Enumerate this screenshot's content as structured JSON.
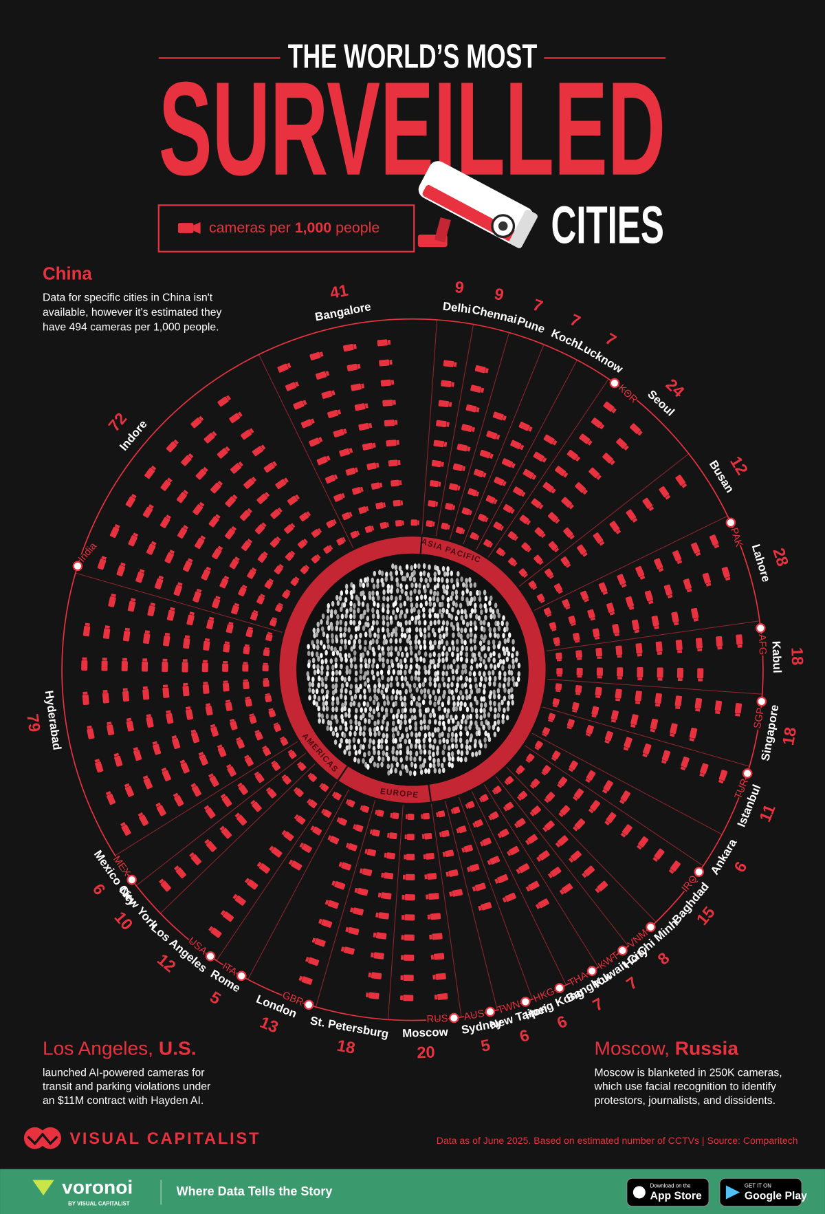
{
  "title_top": "THE WORLD’S MOST",
  "title_main": "SURVEILLED",
  "title_end": "CITIES",
  "legend": {
    "pre": "cameras per ",
    "bold": "1,000",
    "post": " people"
  },
  "annotations": [
    {
      "title": "China",
      "lines": [
        "Data for specific cities in China isn't",
        "available, however it's estimated they",
        "have 494 cameras per 1,000 people."
      ]
    },
    {
      "title": "Los Angeles, ",
      "title_bold": "U.S.",
      "lines": [
        "launched AI-powered cameras for",
        "transit and parking violations under",
        "an $11M contract with Hayden AI."
      ]
    },
    {
      "title": "Moscow, ",
      "title_bold": "Russia",
      "lines": [
        "Moscow is blanketed in 250K cameras,",
        "which use facial recognition to identify",
        "protestors, journalists, and dissidents."
      ]
    }
  ],
  "chart_data": {
    "type": "radial-unit",
    "color": "#e8323f",
    "categories": [
      "Delhi",
      "Chennai",
      "Pune",
      "Kochi",
      "Lucknow",
      "Seoul",
      "Busan",
      "Lahore",
      "Kabul",
      "Singapore",
      "Istanbul",
      "Ankara",
      "Baghdad",
      "Ho Chi Minh",
      "Kuwait City",
      "Bangkok",
      "Hong Kong",
      "New Taipei",
      "Sydney",
      "Moscow",
      "St. Petersburg",
      "London",
      "Rome",
      "Los Angeles",
      "New York",
      "Mexico City",
      "Hyderabad",
      "Indore",
      "Bangalore"
    ],
    "values": [
      9,
      9,
      7,
      7,
      7,
      24,
      12,
      28,
      18,
      18,
      11,
      6,
      15,
      8,
      7,
      7,
      6,
      6,
      5,
      20,
      18,
      13,
      5,
      12,
      10,
      6,
      79,
      72,
      41
    ],
    "countries": [
      null,
      null,
      null,
      null,
      null,
      "KOR",
      null,
      "PAK",
      "AFG",
      "SGP",
      "TUR",
      null,
      "IRQ",
      "VNM",
      "KWT",
      "THA",
      "HKG",
      "TWN",
      "AUS",
      "RUS",
      null,
      "GBR",
      "ITA",
      "USA",
      null,
      "MEX",
      null,
      "India",
      null
    ],
    "regions": [
      "ASIA PACIFIC",
      null,
      null,
      null,
      null,
      null,
      null,
      null,
      null,
      null,
      null,
      null,
      null,
      null,
      null,
      null,
      null,
      null,
      null,
      "EUROPE",
      null,
      null,
      null,
      "AMERICAS",
      null,
      null,
      null,
      null,
      null
    ]
  },
  "footer": {
    "brand": "VISUAL CAPITALIST",
    "source": "Data as of June 2025. Based on estimated number of CCTVs | Source: Comparitech",
    "voronoi": "voronoi",
    "voronoi_sub": "BY VISUAL CAPITALIST",
    "tagline": "Where Data Tells the Story",
    "appstore_small": "Download on the",
    "appstore": "App Store",
    "play_small": "GET IT ON",
    "play": "Google Play"
  }
}
